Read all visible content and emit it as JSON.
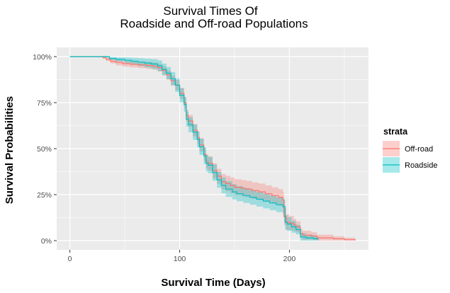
{
  "chart_data": {
    "type": "line",
    "title": [
      "Survival Times Of",
      "Roadside and Off-road Populations"
    ],
    "xlabel": "Survival Time (Days)",
    "ylabel": "Survival Probabilities",
    "xlim": [
      -12,
      272
    ],
    "ylim": [
      -0.05,
      1.05
    ],
    "x_ticks": [
      0,
      100,
      200
    ],
    "y_ticks": [
      0,
      0.25,
      0.5,
      0.75,
      1.0
    ],
    "y_tick_labels": [
      "0%",
      "25%",
      "50%",
      "75%",
      "100%"
    ],
    "grid": true,
    "legend": {
      "title": "strata",
      "position": "right"
    },
    "series": [
      {
        "name": "Off-road",
        "color": "#F8766D",
        "fill": "#F8766D",
        "points": [
          [
            0,
            1.0
          ],
          [
            25,
            1.0
          ],
          [
            30,
            0.995
          ],
          [
            33,
            0.985
          ],
          [
            37,
            0.975
          ],
          [
            42,
            0.968
          ],
          [
            48,
            0.962
          ],
          [
            55,
            0.958
          ],
          [
            62,
            0.955
          ],
          [
            70,
            0.952
          ],
          [
            76,
            0.948
          ],
          [
            80,
            0.94
          ],
          [
            84,
            0.925
          ],
          [
            88,
            0.9
          ],
          [
            92,
            0.87
          ],
          [
            96,
            0.845
          ],
          [
            100,
            0.8
          ],
          [
            104,
            0.75
          ],
          [
            106,
            0.68
          ],
          [
            108,
            0.65
          ],
          [
            112,
            0.6
          ],
          [
            116,
            0.56
          ],
          [
            118,
            0.52
          ],
          [
            122,
            0.47
          ],
          [
            124,
            0.43
          ],
          [
            126,
            0.42
          ],
          [
            130,
            0.38
          ],
          [
            134,
            0.35
          ],
          [
            138,
            0.32
          ],
          [
            142,
            0.31
          ],
          [
            146,
            0.3
          ],
          [
            150,
            0.29
          ],
          [
            156,
            0.285
          ],
          [
            160,
            0.28
          ],
          [
            166,
            0.272
          ],
          [
            172,
            0.265
          ],
          [
            178,
            0.255
          ],
          [
            184,
            0.245
          ],
          [
            190,
            0.235
          ],
          [
            194,
            0.22
          ],
          [
            195,
            0.13
          ],
          [
            197,
            0.1
          ],
          [
            200,
            0.095
          ],
          [
            204,
            0.085
          ],
          [
            206,
            0.075
          ],
          [
            210,
            0.04
          ],
          [
            212,
            0.03
          ],
          [
            220,
            0.025
          ],
          [
            225,
            0.015
          ],
          [
            240,
            0.01
          ],
          [
            250,
            0.005
          ],
          [
            260,
            0.002
          ]
        ],
        "band_width": [
          [
            0,
            0.0
          ],
          [
            25,
            0.003
          ],
          [
            40,
            0.015
          ],
          [
            80,
            0.02
          ],
          [
            100,
            0.03
          ],
          [
            130,
            0.04
          ],
          [
            160,
            0.045
          ],
          [
            195,
            0.045
          ],
          [
            210,
            0.025
          ],
          [
            230,
            0.015
          ],
          [
            260,
            0.01
          ]
        ]
      },
      {
        "name": "Roadside",
        "color": "#00BFC4",
        "fill": "#00BFC4",
        "points": [
          [
            0,
            1.0
          ],
          [
            30,
            1.0
          ],
          [
            36,
            0.99
          ],
          [
            42,
            0.985
          ],
          [
            50,
            0.98
          ],
          [
            56,
            0.975
          ],
          [
            62,
            0.97
          ],
          [
            68,
            0.965
          ],
          [
            74,
            0.96
          ],
          [
            80,
            0.95
          ],
          [
            84,
            0.93
          ],
          [
            88,
            0.91
          ],
          [
            92,
            0.88
          ],
          [
            96,
            0.845
          ],
          [
            100,
            0.79
          ],
          [
            104,
            0.74
          ],
          [
            106,
            0.66
          ],
          [
            108,
            0.63
          ],
          [
            112,
            0.59
          ],
          [
            116,
            0.55
          ],
          [
            118,
            0.51
          ],
          [
            122,
            0.46
          ],
          [
            124,
            0.42
          ],
          [
            126,
            0.41
          ],
          [
            130,
            0.37
          ],
          [
            134,
            0.33
          ],
          [
            138,
            0.3
          ],
          [
            142,
            0.28
          ],
          [
            148,
            0.265
          ],
          [
            152,
            0.255
          ],
          [
            158,
            0.245
          ],
          [
            164,
            0.235
          ],
          [
            170,
            0.225
          ],
          [
            176,
            0.215
          ],
          [
            182,
            0.205
          ],
          [
            188,
            0.195
          ],
          [
            194,
            0.185
          ],
          [
            196,
            0.1
          ],
          [
            198,
            0.09
          ],
          [
            202,
            0.075
          ],
          [
            206,
            0.06
          ],
          [
            210,
            0.02
          ],
          [
            215,
            0.015
          ],
          [
            222,
            0.01
          ],
          [
            226,
            0.005
          ]
        ],
        "band_width": [
          [
            0,
            0.0
          ],
          [
            30,
            0.005
          ],
          [
            60,
            0.02
          ],
          [
            90,
            0.035
          ],
          [
            120,
            0.045
          ],
          [
            160,
            0.04
          ],
          [
            196,
            0.04
          ],
          [
            210,
            0.02
          ],
          [
            226,
            0.01
          ]
        ]
      }
    ]
  }
}
